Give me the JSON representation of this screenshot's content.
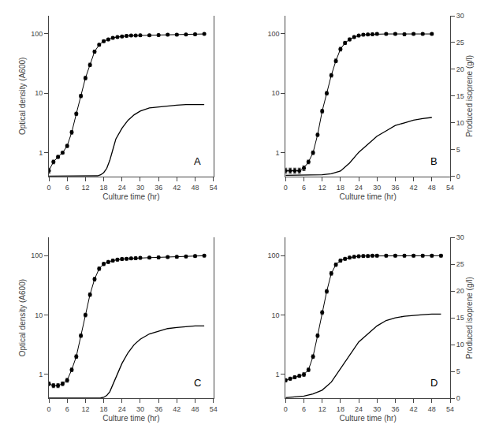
{
  "chart_data": [
    {
      "type": "line",
      "annotations": [
        "A"
      ],
      "xlabel": "Culture time (hr)",
      "ylabel": "Optical density (A600)",
      "log": "y",
      "grid": false,
      "xlim": [
        0,
        54
      ],
      "xticks": [
        0,
        6,
        12,
        18,
        24,
        30,
        36,
        42,
        48,
        54
      ],
      "ylim": [
        0.4,
        200
      ],
      "yticks": [
        1,
        10,
        100
      ],
      "y2lim": [
        0,
        30
      ],
      "series": [
        {
          "color": "black",
          "marker": "circle",
          "line_style": "solid",
          "x": [
            0,
            1.5,
            3,
            4.5,
            6,
            7.5,
            9,
            10.5,
            12,
            13.5,
            15,
            16.5,
            18,
            19.5,
            21,
            22.5,
            24,
            25.5,
            27,
            28.5,
            30,
            33,
            36,
            39,
            42,
            45,
            48,
            51
          ],
          "values": [
            0.5,
            0.7,
            0.85,
            1.0,
            1.3,
            2.2,
            4.5,
            9.0,
            18.0,
            30.0,
            50.0,
            65.0,
            75.0,
            80.0,
            85.0,
            88.0,
            90.0,
            92.0,
            93.0,
            93.0,
            94.0,
            94.0,
            95.0,
            96.0,
            96.0,
            97.0,
            98.0,
            99.0
          ],
          "errors": [
            0.05,
            0.05,
            0.05,
            0.05,
            0.08,
            0.15,
            0.3,
            0.6,
            1.2,
            2.0,
            3.0,
            3.5,
            3.8,
            4.0,
            4.0,
            4.0,
            4.0,
            4.0,
            4.0,
            4.0,
            4.0,
            4.0,
            4.0,
            4.0,
            4.0,
            4.0,
            4.0,
            4.0
          ]
        },
        {
          "color": "black",
          "line_style": "solid",
          "axis": "y2",
          "x": [
            0,
            5,
            10,
            15,
            16,
            17,
            18,
            19,
            20,
            21,
            22,
            24,
            26,
            28,
            30,
            33,
            36,
            39,
            42,
            45,
            48,
            51
          ],
          "values": [
            0.05,
            0.05,
            0.05,
            0.05,
            0.1,
            0.3,
            0.7,
            1.5,
            3.0,
            5.0,
            7.0,
            9.0,
            10.5,
            11.5,
            12.2,
            12.8,
            13.0,
            13.2,
            13.3,
            13.4,
            13.4,
            13.4
          ]
        }
      ]
    },
    {
      "type": "line",
      "annotations": [
        "B"
      ],
      "xlabel": "Culture time (hr)",
      "y2label": "Produced isoprene (g/l)",
      "log": "y",
      "grid": false,
      "xlim": [
        0,
        54
      ],
      "xticks": [
        0,
        6,
        12,
        18,
        24,
        30,
        36,
        42,
        48,
        54
      ],
      "ylim": [
        0.4,
        200
      ],
      "yticks": [
        1,
        10,
        100
      ],
      "y2lim": [
        0,
        30
      ],
      "y2ticks": [
        0,
        5,
        10,
        15,
        20,
        25,
        30
      ],
      "series": [
        {
          "color": "black",
          "marker": "circle",
          "line_style": "solid",
          "x": [
            0,
            1.5,
            3,
            4.5,
            6,
            7.5,
            9,
            10.5,
            12,
            13.5,
            15,
            16.5,
            18,
            19.5,
            21,
            22.5,
            24,
            25.5,
            27,
            28.5,
            30,
            33,
            36,
            39,
            42,
            45,
            48
          ],
          "values": [
            0.5,
            0.5,
            0.5,
            0.5,
            0.55,
            0.7,
            1.0,
            2.0,
            5.0,
            10.0,
            20.0,
            35.0,
            55.0,
            70.0,
            80.0,
            88.0,
            93.0,
            96.0,
            97.0,
            98.0,
            99.0,
            99.0,
            99.0,
            98.0,
            99.0,
            99.0,
            99.0
          ],
          "errors": [
            0.05,
            0.05,
            0.05,
            0.05,
            0.05,
            0.05,
            0.07,
            0.12,
            0.35,
            0.7,
            1.4,
            2.5,
            4.0,
            4.5,
            4.5,
            4.5,
            4.5,
            4.5,
            4.5,
            4.5,
            4.5,
            4.5,
            4.5,
            4.5,
            4.5,
            4.5,
            4.5
          ]
        },
        {
          "color": "black",
          "line_style": "solid",
          "axis": "y2",
          "x": [
            0,
            3,
            6,
            9,
            12,
            15,
            18,
            21,
            24,
            27,
            30,
            33,
            36,
            39,
            42,
            45,
            48
          ],
          "values": [
            0.2,
            0.2,
            0.2,
            0.2,
            0.3,
            0.5,
            1.0,
            2.5,
            4.5,
            6.0,
            7.5,
            8.5,
            9.5,
            10.0,
            10.5,
            10.8,
            11.0
          ]
        }
      ]
    },
    {
      "type": "line",
      "annotations": [
        "C"
      ],
      "xlabel": "Culture time (hr)",
      "ylabel": "Optical density (A600)",
      "log": "y",
      "grid": false,
      "xlim": [
        0,
        54
      ],
      "xticks": [
        0,
        6,
        12,
        18,
        24,
        30,
        36,
        42,
        48,
        54
      ],
      "ylim": [
        0.4,
        200
      ],
      "yticks": [
        1,
        10,
        100
      ],
      "y2lim": [
        0,
        30
      ],
      "series": [
        {
          "color": "black",
          "marker": "circle",
          "line_style": "solid",
          "x": [
            0,
            1.5,
            3,
            4.5,
            6,
            7.5,
            9,
            10.5,
            12,
            13.5,
            15,
            16.5,
            18,
            19.5,
            21,
            22.5,
            24,
            25.5,
            27,
            28.5,
            30,
            33,
            36,
            39,
            42,
            45,
            48,
            51
          ],
          "values": [
            0.7,
            0.65,
            0.65,
            0.7,
            0.8,
            1.2,
            2.0,
            4.5,
            10.0,
            22.0,
            40.0,
            60.0,
            72.0,
            78.0,
            82.0,
            85.0,
            87.0,
            88.0,
            89.0,
            90.0,
            91.0,
            92.0,
            93.0,
            94.0,
            95.0,
            96.0,
            98.0,
            99.0
          ],
          "errors": [
            0.05,
            0.05,
            0.05,
            0.05,
            0.06,
            0.08,
            0.14,
            0.3,
            0.7,
            1.5,
            2.8,
            4.0,
            4.5,
            4.5,
            4.5,
            4.5,
            4.5,
            4.5,
            4.5,
            4.5,
            4.5,
            4.5,
            4.5,
            4.5,
            4.5,
            4.5,
            4.5,
            4.5
          ]
        },
        {
          "color": "black",
          "line_style": "solid",
          "axis": "y2",
          "x": [
            0,
            5,
            10,
            15,
            17,
            18,
            19,
            20,
            21,
            22,
            24,
            26,
            28,
            30,
            33,
            36,
            39,
            42,
            45,
            48,
            51
          ],
          "values": [
            0.02,
            0.02,
            0.02,
            0.02,
            0.05,
            0.15,
            0.5,
            1.2,
            2.5,
            4.0,
            6.5,
            8.5,
            10.0,
            11.0,
            12.0,
            12.5,
            13.0,
            13.2,
            13.4,
            13.5,
            13.5
          ]
        }
      ]
    },
    {
      "type": "line",
      "annotations": [
        "D"
      ],
      "xlabel": "Culture time (hr)",
      "y2label": "Produced isoprene (g/l)",
      "log": "y",
      "grid": false,
      "xlim": [
        0,
        54
      ],
      "xticks": [
        0,
        6,
        12,
        18,
        24,
        30,
        36,
        42,
        48,
        54
      ],
      "ylim": [
        0.4,
        200
      ],
      "yticks": [
        1,
        10,
        100
      ],
      "y2lim": [
        0,
        30
      ],
      "y2ticks": [
        0,
        5,
        10,
        15,
        20,
        25,
        30
      ],
      "series": [
        {
          "color": "black",
          "marker": "circle",
          "line_style": "solid",
          "x": [
            0,
            1.5,
            3,
            4.5,
            6,
            7.5,
            9,
            10.5,
            12,
            13.5,
            15,
            16.5,
            18,
            19.5,
            21,
            22.5,
            24,
            25.5,
            27,
            28.5,
            30,
            33,
            36,
            39,
            42,
            45,
            48,
            51
          ],
          "values": [
            0.8,
            0.85,
            0.9,
            0.95,
            1.0,
            1.2,
            2.0,
            4.5,
            11.0,
            25.0,
            50.0,
            70.0,
            82.0,
            88.0,
            92.0,
            95.0,
            97.0,
            98.0,
            98.0,
            99.0,
            99.0,
            99.0,
            99.0,
            99.0,
            99.0,
            99.0,
            99.0,
            99.0
          ],
          "errors": [
            0.05,
            0.05,
            0.05,
            0.05,
            0.07,
            0.08,
            0.14,
            0.3,
            0.8,
            1.8,
            3.5,
            4.5,
            5.0,
            5.0,
            5.0,
            5.0,
            5.0,
            5.0,
            5.0,
            5.0,
            5.0,
            5.0,
            5.0,
            5.0,
            5.0,
            5.0,
            5.0,
            5.0
          ]
        },
        {
          "color": "black",
          "line_style": "solid",
          "axis": "y2",
          "x": [
            0,
            3,
            6,
            9,
            12,
            15,
            18,
            21,
            24,
            27,
            30,
            33,
            36,
            39,
            42,
            45,
            48,
            51
          ],
          "values": [
            0.1,
            0.2,
            0.4,
            0.8,
            1.5,
            3.0,
            5.5,
            8.0,
            10.5,
            12.0,
            13.5,
            14.5,
            15.0,
            15.3,
            15.5,
            15.6,
            15.7,
            15.7
          ]
        }
      ]
    }
  ]
}
